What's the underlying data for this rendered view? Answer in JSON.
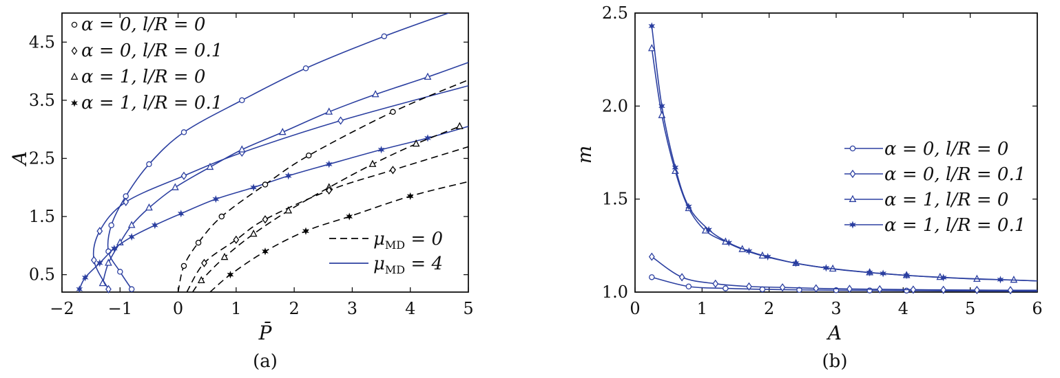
{
  "chart_data": [
    {
      "type": "line",
      "caption": "(a)",
      "xlabel": "P̄",
      "ylabel": "A",
      "xlim": [
        -2,
        5
      ],
      "ylim": [
        0.2,
        5.0
      ],
      "xticks": [
        -2,
        -1,
        0,
        1,
        2,
        3,
        4,
        5
      ],
      "yticks": [
        0.5,
        1.5,
        2.5,
        3.5,
        4.5
      ],
      "grid": false,
      "legends": [
        {
          "placement": "top-left",
          "entries": [
            {
              "label": "α = 0,  l/R = 0",
              "marker": "circle"
            },
            {
              "label": "α = 0,  l/R = 0.1",
              "marker": "diamond"
            },
            {
              "label": "α = 1,  l/R = 0",
              "marker": "triangle"
            },
            {
              "label": "α = 1,  l/R = 0.1",
              "marker": "star"
            }
          ]
        },
        {
          "placement": "bottom-right",
          "entries": [
            {
              "label": "μMD = 0",
              "style": "dashed",
              "color": "#000000"
            },
            {
              "label": "μMD = 4",
              "style": "solid",
              "color": "#2b3fa0"
            }
          ]
        }
      ],
      "series": [
        {
          "marker": "circle",
          "mu": "4",
          "color": "#2b3fa0",
          "style": "solid",
          "points": [
            [
              -0.8,
              0.25
            ],
            [
              -1.0,
              0.55
            ],
            [
              -1.2,
              0.9
            ],
            [
              -1.15,
              1.35
            ],
            [
              -0.9,
              1.85
            ],
            [
              -0.5,
              2.4
            ],
            [
              0.1,
              2.95
            ],
            [
              1.1,
              3.5
            ],
            [
              2.2,
              4.05
            ],
            [
              3.55,
              4.6
            ],
            [
              4.8,
              5.05
            ]
          ]
        },
        {
          "marker": "diamond",
          "mu": "4",
          "color": "#2b3fa0",
          "style": "solid",
          "points": [
            [
              -1.2,
              0.25
            ],
            [
              -1.45,
              0.75
            ],
            [
              -1.35,
              1.25
            ],
            [
              -0.9,
              1.75
            ],
            [
              0.1,
              2.2
            ],
            [
              1.1,
              2.6
            ],
            [
              2.8,
              3.15
            ],
            [
              5.0,
              3.75
            ]
          ]
        },
        {
          "marker": "triangle",
          "mu": "4",
          "color": "#2b3fa0",
          "style": "solid",
          "points": [
            [
              -1.3,
              0.35
            ],
            [
              -1.2,
              0.7
            ],
            [
              -1.0,
              1.05
            ],
            [
              -0.8,
              1.35
            ],
            [
              -0.5,
              1.65
            ],
            [
              -0.05,
              2.0
            ],
            [
              0.55,
              2.35
            ],
            [
              1.1,
              2.65
            ],
            [
              1.8,
              2.95
            ],
            [
              2.6,
              3.3
            ],
            [
              3.4,
              3.6
            ],
            [
              4.3,
              3.9
            ],
            [
              5.0,
              4.15
            ]
          ]
        },
        {
          "marker": "star",
          "mu": "4",
          "color": "#2b3fa0",
          "style": "solid",
          "points": [
            [
              -1.7,
              0.25
            ],
            [
              -1.6,
              0.45
            ],
            [
              -1.35,
              0.7
            ],
            [
              -1.1,
              0.95
            ],
            [
              -0.8,
              1.15
            ],
            [
              -0.4,
              1.35
            ],
            [
              0.05,
              1.55
            ],
            [
              0.65,
              1.8
            ],
            [
              1.3,
              2.0
            ],
            [
              1.9,
              2.2
            ],
            [
              2.6,
              2.4
            ],
            [
              3.5,
              2.65
            ],
            [
              4.3,
              2.85
            ],
            [
              5.0,
              3.05
            ]
          ]
        },
        {
          "marker": "circle",
          "mu": "0",
          "color": "#000000",
          "style": "dashed",
          "points": [
            [
              0.0,
              0.2
            ],
            [
              0.1,
              0.65
            ],
            [
              0.35,
              1.05
            ],
            [
              0.75,
              1.5
            ],
            [
              1.5,
              2.05
            ],
            [
              2.25,
              2.55
            ],
            [
              3.7,
              3.3
            ],
            [
              5.0,
              3.85
            ]
          ]
        },
        {
          "marker": "triangle",
          "mu": "0",
          "color": "#000000",
          "style": "dashed",
          "points": [
            [
              0.25,
              0.2
            ],
            [
              0.4,
              0.4
            ],
            [
              0.8,
              0.8
            ],
            [
              1.3,
              1.2
            ],
            [
              1.9,
              1.6
            ],
            [
              2.6,
              2.0
            ],
            [
              3.35,
              2.4
            ],
            [
              4.1,
              2.75
            ],
            [
              4.85,
              3.05
            ]
          ]
        },
        {
          "marker": "diamond",
          "mu": "0",
          "color": "#000000",
          "style": "dashed",
          "points": [
            [
              0.15,
              0.2
            ],
            [
              0.45,
              0.7
            ],
            [
              1.0,
              1.1
            ],
            [
              1.5,
              1.45
            ],
            [
              2.6,
              1.95
            ],
            [
              3.7,
              2.3
            ],
            [
              5.0,
              2.7
            ]
          ]
        },
        {
          "marker": "star",
          "mu": "0",
          "color": "#000000",
          "style": "dashed",
          "points": [
            [
              0.55,
              0.2
            ],
            [
              0.9,
              0.5
            ],
            [
              1.5,
              0.9
            ],
            [
              2.2,
              1.25
            ],
            [
              2.95,
              1.5
            ],
            [
              4.0,
              1.85
            ],
            [
              5.0,
              2.1
            ]
          ]
        }
      ]
    },
    {
      "type": "line",
      "caption": "(b)",
      "xlabel": "A",
      "ylabel": "m",
      "xlim": [
        0,
        6
      ],
      "ylim": [
        1.0,
        2.5
      ],
      "xticks": [
        0,
        1,
        2,
        3,
        4,
        5,
        6
      ],
      "yticks": [
        1.0,
        1.5,
        2.0,
        2.5
      ],
      "grid": false,
      "legends": [
        {
          "placement": "center-right",
          "entries": [
            {
              "label": "α = 0,  l/R = 0",
              "marker": "circle"
            },
            {
              "label": "α = 0,  l/R = 0.1",
              "marker": "diamond"
            },
            {
              "label": "α = 1,  l/R = 0",
              "marker": "triangle"
            },
            {
              "label": "α = 1,  l/R = 0.1",
              "marker": "star"
            }
          ]
        }
      ],
      "series": [
        {
          "marker": "circle",
          "color": "#2b3fa0",
          "points": [
            [
              0.25,
              1.08
            ],
            [
              0.8,
              1.03
            ],
            [
              1.35,
              1.02
            ],
            [
              1.9,
              1.015
            ],
            [
              2.45,
              1.012
            ],
            [
              3.0,
              1.01
            ],
            [
              3.5,
              1.009
            ],
            [
              4.05,
              1.008
            ],
            [
              4.55,
              1.007
            ],
            [
              5.1,
              1.006
            ],
            [
              5.65,
              1.005
            ],
            [
              6.0,
              1.005
            ]
          ]
        },
        {
          "marker": "diamond",
          "color": "#2b3fa0",
          "points": [
            [
              0.25,
              1.19
            ],
            [
              0.7,
              1.08
            ],
            [
              1.2,
              1.045
            ],
            [
              1.7,
              1.03
            ],
            [
              2.2,
              1.025
            ],
            [
              2.7,
              1.02
            ],
            [
              3.2,
              1.017
            ],
            [
              3.65,
              1.015
            ],
            [
              4.15,
              1.013
            ],
            [
              4.6,
              1.012
            ],
            [
              5.1,
              1.011
            ],
            [
              5.6,
              1.01
            ],
            [
              6.0,
              1.01
            ]
          ]
        },
        {
          "marker": "triangle",
          "color": "#2b3fa0",
          "points": [
            [
              0.25,
              2.31
            ],
            [
              0.4,
              1.95
            ],
            [
              0.6,
              1.65
            ],
            [
              0.8,
              1.45
            ],
            [
              1.05,
              1.33
            ],
            [
              1.35,
              1.27
            ],
            [
              1.6,
              1.23
            ],
            [
              1.9,
              1.195
            ],
            [
              2.4,
              1.155
            ],
            [
              2.95,
              1.125
            ],
            [
              3.5,
              1.105
            ],
            [
              4.05,
              1.09
            ],
            [
              4.55,
              1.08
            ],
            [
              5.1,
              1.07
            ],
            [
              5.65,
              1.065
            ],
            [
              6.0,
              1.06
            ]
          ]
        },
        {
          "marker": "star",
          "color": "#2b3fa0",
          "points": [
            [
              0.25,
              2.43
            ],
            [
              0.4,
              2.0
            ],
            [
              0.6,
              1.67
            ],
            [
              0.8,
              1.46
            ],
            [
              1.1,
              1.335
            ],
            [
              1.4,
              1.265
            ],
            [
              1.7,
              1.22
            ],
            [
              1.98,
              1.19
            ],
            [
              2.4,
              1.155
            ],
            [
              2.85,
              1.13
            ],
            [
              3.5,
              1.105
            ],
            [
              3.7,
              1.1
            ],
            [
              4.05,
              1.09
            ],
            [
              4.6,
              1.078
            ],
            [
              5.45,
              1.067
            ],
            [
              6.0,
              1.06
            ]
          ]
        }
      ]
    }
  ]
}
